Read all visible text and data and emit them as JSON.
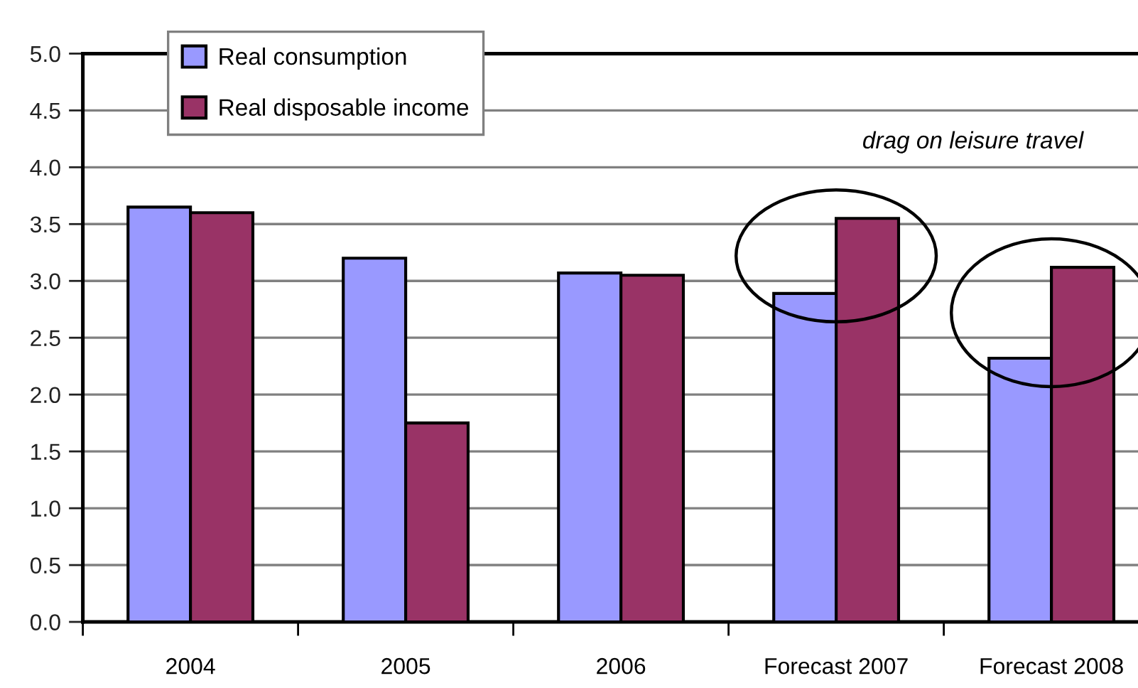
{
  "chart_data": {
    "type": "bar",
    "categories": [
      "2004",
      "2005",
      "2006",
      "Forecast 2007",
      "Forecast 2008"
    ],
    "series": [
      {
        "name": "Real consumption",
        "color": "#9999ff",
        "values": [
          3.65,
          3.2,
          3.07,
          2.89,
          2.32
        ]
      },
      {
        "name": "Real disposable income",
        "color": "#993366",
        "values": [
          3.6,
          1.75,
          3.05,
          3.55,
          3.12
        ]
      }
    ],
    "ylim": [
      0,
      5
    ],
    "yticks": [
      {
        "value": 0,
        "label": "0.0"
      },
      {
        "value": 0.5,
        "label": "0.5"
      },
      {
        "value": 1,
        "label": "1.0"
      },
      {
        "value": 1.5,
        "label": "1.5"
      },
      {
        "value": 2,
        "label": "2.0"
      },
      {
        "value": 2.5,
        "label": "2.5"
      },
      {
        "value": 3,
        "label": "3.0"
      },
      {
        "value": 3.5,
        "label": "3.5"
      },
      {
        "value": 4,
        "label": "4.0"
      },
      {
        "value": 4.5,
        "label": "4.5"
      },
      {
        "value": 5,
        "label": "5.0"
      }
    ],
    "grid": "y",
    "legend": "top left",
    "annotations": [
      "drag on leisure travel"
    ]
  }
}
